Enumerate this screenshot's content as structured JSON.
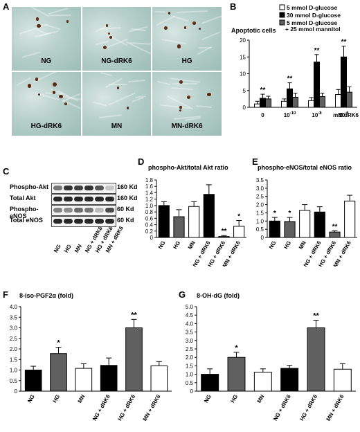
{
  "panel_letters": {
    "a": "A",
    "b": "B",
    "c": "C",
    "d": "D",
    "e": "E",
    "f": "F",
    "g": "G"
  },
  "micrographs": [
    "NG",
    "NG-dRK6",
    "HG",
    "HG-dRK6",
    "MN",
    "MN-dRK6"
  ],
  "blot": {
    "rows": [
      {
        "name": "Phospho-Akt",
        "kd": "160 Kd"
      },
      {
        "name": "Total Akt",
        "kd": "160 Kd"
      },
      {
        "name": "Phospho-eNOS",
        "kd": "60 Kd"
      },
      {
        "name": "Total eNOS",
        "kd": "60 Kd"
      }
    ],
    "lanes": [
      "NG",
      "HG",
      "MN",
      "NG + dRK6",
      "HG + dRK6",
      "MN + dRK6"
    ],
    "intensity": [
      [
        0.55,
        0.85,
        0.8,
        0.85,
        0.7,
        0.2
      ],
      [
        0.9,
        0.9,
        0.9,
        0.9,
        0.9,
        0.9
      ],
      [
        0.5,
        0.45,
        0.6,
        0.55,
        0.25,
        0.75
      ],
      [
        0.9,
        0.9,
        0.9,
        0.9,
        0.9,
        0.9
      ]
    ]
  },
  "colors": {
    "ng": "#000000",
    "hg": "#606060",
    "mn": "#ffffff",
    "stroke": "#000000"
  },
  "chart_data": [
    {
      "id": "B",
      "type": "bar",
      "title": "Apoptotic cells",
      "legend": [
        "5 mmol D-glucose",
        "30 mmol D-glucose",
        "5 mmol D-glucose",
        "+ 25 mmol mannitol"
      ],
      "legend_placement": "top-right",
      "categories": [
        "0",
        "10",
        "10",
        "10"
      ],
      "category_exponents": [
        "",
        "-10",
        "-8",
        "-6"
      ],
      "xunit": "mM dRK6",
      "ylim": [
        0,
        20
      ],
      "yticks": [
        "0",
        "5",
        "10",
        "15",
        "20"
      ],
      "series": [
        {
          "name": "5 mmol D-glucose",
          "values": [
            1.0,
            1.8,
            2.0,
            3.8
          ],
          "errors": [
            0.8,
            0.7,
            0.9,
            1.5
          ],
          "color": "#ffffff"
        },
        {
          "name": "30 mmol D-glucose",
          "values": [
            2.7,
            5.5,
            13.5,
            15.0
          ],
          "errors": [
            1.2,
            1.8,
            2.2,
            3.2
          ],
          "color": "#000000"
        },
        {
          "name": "5 mmol D-glucose + 25 mmol mannitol",
          "values": [
            2.5,
            3.0,
            3.2,
            4.5
          ],
          "errors": [
            0.8,
            1.2,
            1.0,
            1.6
          ],
          "color": "#606060"
        }
      ],
      "stars": [
        "**",
        "**",
        "**",
        "**"
      ]
    },
    {
      "id": "D",
      "type": "bar",
      "title": "phospho-Akt/total Akt ratio",
      "categories": [
        "NG",
        "HG",
        "MN",
        "NG + dRK6",
        "HG + dRK6",
        "MN + dRK6"
      ],
      "ylim": [
        0,
        1.8
      ],
      "yticks": [
        "0",
        "0.2",
        "0.4",
        "0.6",
        "0.8",
        "1.0",
        "1.2",
        "1.4",
        "1.6",
        "1.8"
      ],
      "values": [
        1.0,
        0.65,
        0.97,
        1.35,
        0.03,
        0.35
      ],
      "errors": [
        0.12,
        0.22,
        0.15,
        0.3,
        0.03,
        0.18
      ],
      "colors": [
        "#000000",
        "#606060",
        "#ffffff",
        "#000000",
        "#606060",
        "#ffffff"
      ],
      "stars": [
        "",
        "",
        "",
        "",
        "**",
        "*"
      ]
    },
    {
      "id": "E",
      "type": "bar",
      "title": "phospho-eNOS/total eNOS ratio",
      "categories": [
        "NG",
        "HG",
        "MN",
        "NG + dRK6",
        "HG + dRK6",
        "MN + dRK6"
      ],
      "ylim": [
        0,
        3.5
      ],
      "yticks": [
        "0",
        "0.5",
        "1.0",
        "1.5",
        "2.0",
        "2.5",
        "3.0",
        "3.5"
      ],
      "values": [
        1.0,
        0.97,
        1.65,
        1.55,
        0.33,
        2.22
      ],
      "errors": [
        0.22,
        0.25,
        0.35,
        0.32,
        0.08,
        0.35
      ],
      "colors": [
        "#000000",
        "#606060",
        "#ffffff",
        "#000000",
        "#606060",
        "#ffffff"
      ],
      "stars": [
        "*",
        "*",
        "",
        "",
        "**",
        ""
      ]
    },
    {
      "id": "F",
      "type": "bar",
      "title": "8-iso-PGF2α (fold)",
      "categories": [
        "NG",
        "HG",
        "MN",
        "NG + dRK6",
        "HG + dRK6",
        "MN + dRK6"
      ],
      "ylim": [
        0,
        4.0
      ],
      "yticks": [
        "0",
        "0.5",
        "1.0",
        "1.5",
        "2.0",
        "2.5",
        "3.0",
        "3.5",
        "4.0"
      ],
      "values": [
        1.0,
        1.78,
        1.08,
        1.22,
        3.0,
        1.2
      ],
      "errors": [
        0.18,
        0.3,
        0.22,
        0.35,
        0.4,
        0.2
      ],
      "colors": [
        "#000000",
        "#606060",
        "#ffffff",
        "#000000",
        "#606060",
        "#ffffff"
      ],
      "stars": [
        "",
        "*",
        "",
        "",
        "**",
        ""
      ]
    },
    {
      "id": "G",
      "type": "bar",
      "title": "8-OH-dG (fold)",
      "categories": [
        "NG",
        "HG",
        "MN",
        "NG + dRK6",
        "HG + dRK6",
        "MN + dRK6"
      ],
      "ylim": [
        0,
        5.0
      ],
      "yticks": [
        "0",
        "0.5",
        "1.0",
        "1.5",
        "2.0",
        "2.5",
        "3.0",
        "3.5",
        "4.0",
        "4.5",
        "5.0"
      ],
      "values": [
        1.0,
        2.0,
        1.12,
        1.35,
        3.75,
        1.3
      ],
      "errors": [
        0.32,
        0.3,
        0.2,
        0.18,
        0.45,
        0.32
      ],
      "colors": [
        "#000000",
        "#606060",
        "#ffffff",
        "#000000",
        "#606060",
        "#ffffff"
      ],
      "stars": [
        "",
        "*",
        "",
        "",
        "**",
        ""
      ]
    }
  ]
}
